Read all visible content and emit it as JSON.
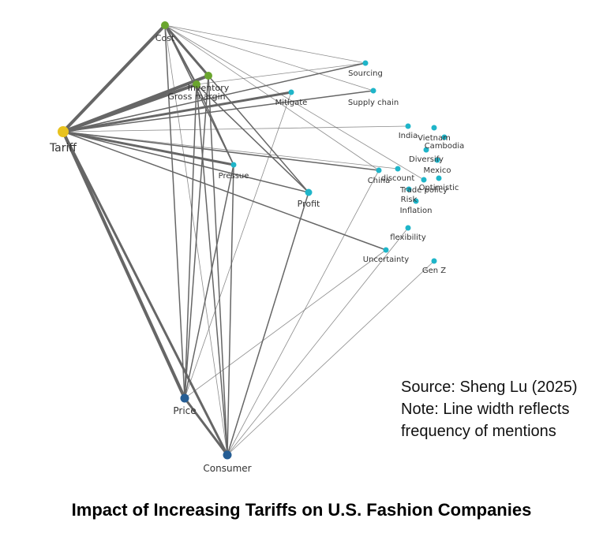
{
  "title": "Impact of Increasing Tariffs on U.S. Fashion Companies",
  "note": {
    "source": "Source: Sheng Lu (2025)",
    "line1": "Note: Line width reflects",
    "line2": "frequency of mentions"
  },
  "colors": {
    "tariff": "#e8c21e",
    "business": "#6aa52e",
    "market": "#1fb5c9",
    "consumer": "#255d94",
    "edge": "#666666"
  },
  "nodes": [
    {
      "id": "tariff",
      "label": "Tariff",
      "group": "tariff"
    },
    {
      "id": "cost",
      "label": "Cost",
      "group": "business"
    },
    {
      "id": "inventory",
      "label": "Inventory",
      "group": "business"
    },
    {
      "id": "gross_margin",
      "label": "Gross margin",
      "group": "business"
    },
    {
      "id": "sourcing",
      "label": "Sourcing",
      "group": "market"
    },
    {
      "id": "supply_chain",
      "label": "Supply chain",
      "group": "market"
    },
    {
      "id": "mitigate",
      "label": "Mitigate",
      "group": "market"
    },
    {
      "id": "india",
      "label": "India",
      "group": "market"
    },
    {
      "id": "vietnam",
      "label": "Vietnam",
      "group": "market"
    },
    {
      "id": "cambodia",
      "label": "Cambodia",
      "group": "market"
    },
    {
      "id": "diversify",
      "label": "Diversify",
      "group": "market"
    },
    {
      "id": "mexico",
      "label": "Mexico",
      "group": "market"
    },
    {
      "id": "pressue",
      "label": "Pressue",
      "group": "market"
    },
    {
      "id": "discount",
      "label": "discount",
      "group": "market"
    },
    {
      "id": "china",
      "label": "China",
      "group": "market"
    },
    {
      "id": "optimistic",
      "label": "Optimistic",
      "group": "market"
    },
    {
      "id": "trade_policy",
      "label": "Trade policy",
      "group": "market"
    },
    {
      "id": "risk",
      "label": "Risk",
      "group": "market"
    },
    {
      "id": "inflation",
      "label": "Inflation",
      "group": "market"
    },
    {
      "id": "profit",
      "label": "Profit",
      "group": "market"
    },
    {
      "id": "flexibility",
      "label": "flexibility",
      "group": "market"
    },
    {
      "id": "uncertainty",
      "label": "Uncertainty",
      "group": "market"
    },
    {
      "id": "gen_z",
      "label": "Gen Z",
      "group": "market"
    },
    {
      "id": "price",
      "label": "Price",
      "group": "consumer"
    },
    {
      "id": "consumer",
      "label": "Consumer",
      "group": "consumer"
    }
  ],
  "edges": [
    {
      "source": "tariff",
      "target": "cost",
      "weight": 5
    },
    {
      "source": "tariff",
      "target": "inventory",
      "weight": 5
    },
    {
      "source": "tariff",
      "target": "gross_margin",
      "weight": 5
    },
    {
      "source": "tariff",
      "target": "mitigate",
      "weight": 4
    },
    {
      "source": "tariff",
      "target": "sourcing",
      "weight": 2
    },
    {
      "source": "tariff",
      "target": "supply_chain",
      "weight": 2
    },
    {
      "source": "tariff",
      "target": "india",
      "weight": 1
    },
    {
      "source": "tariff",
      "target": "pressue",
      "weight": 4
    },
    {
      "source": "tariff",
      "target": "profit",
      "weight": 2
    },
    {
      "source": "tariff",
      "target": "china",
      "weight": 2
    },
    {
      "source": "tariff",
      "target": "discount",
      "weight": 1
    },
    {
      "source": "tariff",
      "target": "uncertainty",
      "weight": 2
    },
    {
      "source": "tariff",
      "target": "price",
      "weight": 5
    },
    {
      "source": "tariff",
      "target": "consumer",
      "weight": 4
    },
    {
      "source": "cost",
      "target": "inventory",
      "weight": 4
    },
    {
      "source": "cost",
      "target": "gross_margin",
      "weight": 3
    },
    {
      "source": "cost",
      "target": "sourcing",
      "weight": 1
    },
    {
      "source": "cost",
      "target": "supply_chain",
      "weight": 1
    },
    {
      "source": "cost",
      "target": "profit",
      "weight": 2
    },
    {
      "source": "cost",
      "target": "pressue",
      "weight": 2
    },
    {
      "source": "cost",
      "target": "china",
      "weight": 1
    },
    {
      "source": "cost",
      "target": "trade_policy",
      "weight": 1
    },
    {
      "source": "cost",
      "target": "price",
      "weight": 2
    },
    {
      "source": "cost",
      "target": "consumer",
      "weight": 1
    },
    {
      "source": "inventory",
      "target": "price",
      "weight": 2
    },
    {
      "source": "inventory",
      "target": "consumer",
      "weight": 2
    },
    {
      "source": "gross_margin",
      "target": "price",
      "weight": 2
    },
    {
      "source": "gross_margin",
      "target": "consumer",
      "weight": 2
    },
    {
      "source": "gross_margin",
      "target": "pressue",
      "weight": 2
    },
    {
      "source": "gross_margin",
      "target": "profit",
      "weight": 2
    },
    {
      "source": "pressue",
      "target": "price",
      "weight": 2
    },
    {
      "source": "pressue",
      "target": "consumer",
      "weight": 2
    },
    {
      "source": "profit",
      "target": "consumer",
      "weight": 2
    },
    {
      "source": "mitigate",
      "target": "price",
      "weight": 1
    },
    {
      "source": "sourcing",
      "target": "gross_margin",
      "weight": 1
    },
    {
      "source": "china",
      "target": "consumer",
      "weight": 1
    },
    {
      "source": "uncertainty",
      "target": "price",
      "weight": 1
    },
    {
      "source": "flexibility",
      "target": "consumer",
      "weight": 1
    },
    {
      "source": "gen_z",
      "target": "consumer",
      "weight": 1
    },
    {
      "source": "price",
      "target": "consumer",
      "weight": 4
    }
  ]
}
